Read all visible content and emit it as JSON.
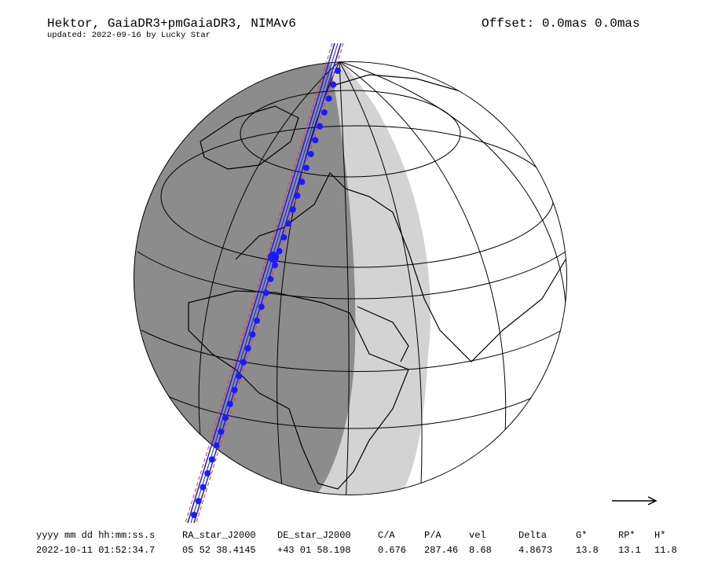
{
  "header": {
    "title": "Hektor, GaiaDR3+pmGaiaDR3, NIMAv6",
    "updated": "updated: 2022-09-16 by Lucky Star",
    "offset": "Offset: 0.0mas 0.0mas"
  },
  "table": {
    "columns": [
      "yyyy mm dd hh:mm:ss.s",
      "RA_star_J2000",
      "DE_star_J2000",
      "C/A",
      "P/A",
      "vel",
      "Delta",
      "G*",
      "RP*",
      "H*"
    ],
    "rows": [
      [
        "2022-10-11 01:52:34.7",
        "05 52 38.4145",
        "+43 01 58.198",
        "0.676",
        "287.46",
        "8.68",
        "4.8673",
        "13.8",
        "13.1",
        "11.8"
      ]
    ]
  }
}
